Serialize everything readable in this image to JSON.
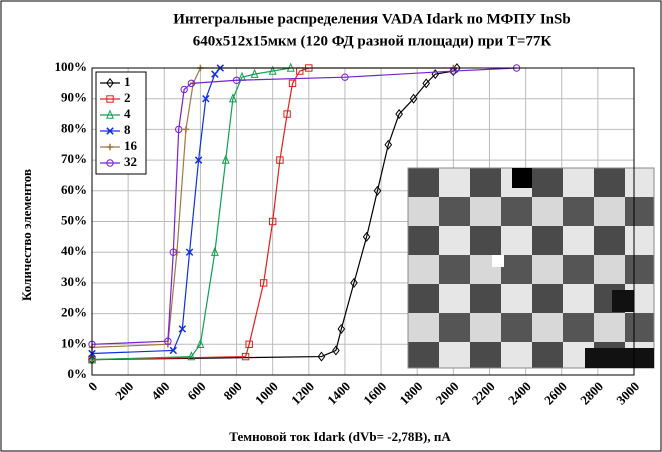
{
  "chart_data": {
    "type": "line",
    "title": "Интегральные распределения VADA Idark по МФПУ InSb",
    "subtitle": "640x512x15мкм (120 ФД разной площади) при Т=77К",
    "x_label": "Темновой ток Idark (dVb= -2,78В), пА",
    "y_label": "Количество элементов",
    "xlim": [
      0,
      3000
    ],
    "ylim": [
      0,
      100
    ],
    "xticks": [
      0,
      200,
      400,
      600,
      800,
      1000,
      1200,
      1400,
      1600,
      1800,
      2000,
      2200,
      2400,
      2600,
      2800,
      3000
    ],
    "yticks": [
      {
        "value": 0,
        "label": "0%"
      },
      {
        "value": 10,
        "label": "10%"
      },
      {
        "value": 20,
        "label": "20%"
      },
      {
        "value": 30,
        "label": "30%"
      },
      {
        "value": 40,
        "label": "40%"
      },
      {
        "value": 50,
        "label": "50%"
      },
      {
        "value": 60,
        "label": "60%"
      },
      {
        "value": 70,
        "label": "70%"
      },
      {
        "value": 80,
        "label": "80%"
      },
      {
        "value": 90,
        "label": "90%"
      },
      {
        "value": 100,
        "label": "100%"
      }
    ],
    "grid": true,
    "legend": "top-left",
    "series": [
      {
        "name": "1",
        "color": "#000000",
        "marker": "diamond",
        "x": [
          0,
          1270,
          1350,
          1380,
          1450,
          1520,
          1580,
          1640,
          1700,
          1780,
          1850,
          1900,
          2000,
          2020
        ],
        "values": [
          5,
          6,
          8,
          15,
          30,
          45,
          60,
          75,
          85,
          90,
          95,
          98,
          99,
          100
        ]
      },
      {
        "name": "2",
        "color": "#e0201c",
        "marker": "square",
        "x": [
          0,
          850,
          870,
          950,
          1000,
          1040,
          1080,
          1110,
          1150,
          1200
        ],
        "values": [
          5,
          6,
          10,
          30,
          50,
          70,
          85,
          95,
          99,
          100
        ]
      },
      {
        "name": "4",
        "color": "#10a050",
        "marker": "triangle",
        "x": [
          0,
          550,
          600,
          680,
          740,
          780,
          830,
          900,
          1000,
          1100
        ],
        "values": [
          5,
          6,
          10,
          40,
          70,
          90,
          97,
          98,
          99,
          100
        ]
      },
      {
        "name": "8",
        "color": "#1030e0",
        "marker": "x",
        "x": [
          0,
          450,
          500,
          540,
          590,
          630,
          680,
          710
        ],
        "values": [
          7,
          8,
          15,
          40,
          70,
          90,
          98,
          100
        ]
      },
      {
        "name": "16",
        "color": "#a07840",
        "marker": "plus",
        "x": [
          0,
          420,
          470,
          520,
          560,
          600,
          2000
        ],
        "values": [
          9,
          10,
          40,
          80,
          95,
          100,
          100
        ]
      },
      {
        "name": "32",
        "color": "#7a20d0",
        "marker": "circle",
        "x": [
          0,
          420,
          450,
          480,
          510,
          550,
          800,
          1400,
          2000,
          2350
        ],
        "values": [
          10,
          11,
          40,
          80,
          93,
          95,
          96,
          97,
          99,
          100
        ]
      }
    ]
  }
}
